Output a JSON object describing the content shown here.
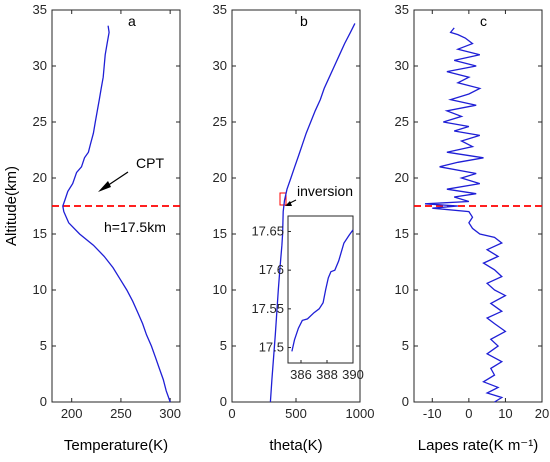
{
  "colors": {
    "series": "#1f1fd6",
    "reference_line": "#ff0000",
    "inset_box": "#ff0000"
  },
  "chart_data": [
    {
      "panel": "a",
      "type": "line",
      "xlabel": "Temperature(K)",
      "ylabel": "Altitude(km)",
      "xlim": [
        180,
        310
      ],
      "ylim": [
        0,
        35
      ],
      "xticks": [
        200,
        250,
        300
      ],
      "yticks": [
        0,
        5,
        10,
        15,
        20,
        25,
        30,
        35
      ],
      "reference_line": {
        "y": 17.5,
        "style": "dashed"
      },
      "annotations": [
        {
          "text": "CPT",
          "arrow": true
        },
        {
          "text": "h=17.5km"
        }
      ],
      "series": [
        {
          "points": [
            [
              300,
              0
            ],
            [
              296,
              1
            ],
            [
              293,
              2
            ],
            [
              289,
              3
            ],
            [
              285,
              4
            ],
            [
              281,
              5
            ],
            [
              276,
              6
            ],
            [
              272,
              7
            ],
            [
              267,
              8
            ],
            [
              262,
              9
            ],
            [
              256,
              10
            ],
            [
              249,
              11
            ],
            [
              242,
              12
            ],
            [
              233,
              13
            ],
            [
              222,
              14
            ],
            [
              208,
              15
            ],
            [
              197,
              16
            ],
            [
              192,
              17
            ],
            [
              191,
              17.5
            ],
            [
              193,
              18
            ],
            [
              196,
              18.8
            ],
            [
              201,
              19.5
            ],
            [
              205,
              20.5
            ],
            [
              210,
              21
            ],
            [
              213,
              21.8
            ],
            [
              217,
              22.3
            ],
            [
              219,
              23
            ],
            [
              222,
              24
            ],
            [
              224,
              25
            ],
            [
              226,
              26
            ],
            [
              228,
              27
            ],
            [
              230,
              28
            ],
            [
              232,
              29
            ],
            [
              233,
              30
            ],
            [
              234,
              31
            ],
            [
              236,
              32
            ],
            [
              238,
              33
            ],
            [
              237,
              33.6
            ]
          ]
        }
      ]
    },
    {
      "panel": "b",
      "type": "line",
      "xlabel": "theta(K)",
      "xlim": [
        0,
        1000
      ],
      "ylim": [
        0,
        35
      ],
      "xticks": [
        0,
        500,
        1000
      ],
      "yticks": [
        0,
        5,
        10,
        15,
        20,
        25,
        30,
        35
      ],
      "annotations": [
        {
          "text": "inversion",
          "arrow": true
        }
      ],
      "series": [
        {
          "points": [
            [
              300,
              0
            ],
            [
              312,
              2
            ],
            [
              325,
              4
            ],
            [
              338,
              6
            ],
            [
              350,
              8
            ],
            [
              362,
              10
            ],
            [
              375,
              12
            ],
            [
              390,
              14
            ],
            [
              395,
              15
            ],
            [
              398,
              16
            ],
            [
              400,
              17
            ],
            [
              410,
              18
            ],
            [
              430,
              19
            ],
            [
              460,
              20
            ],
            [
              490,
              21
            ],
            [
              520,
              22
            ],
            [
              550,
              23
            ],
            [
              580,
              24
            ],
            [
              615,
              25
            ],
            [
              650,
              26
            ],
            [
              690,
              27
            ],
            [
              720,
              28
            ],
            [
              760,
              29
            ],
            [
              800,
              30
            ],
            [
              840,
              31
            ],
            [
              880,
              32
            ],
            [
              925,
              33
            ],
            [
              960,
              33.8
            ]
          ]
        }
      ],
      "inset": {
        "xlim": [
          385,
          390
        ],
        "ylim": [
          17.48,
          17.67
        ],
        "xticks": [
          386,
          388,
          390
        ],
        "yticks": [
          17.5,
          17.55,
          17.6,
          17.65
        ],
        "series": [
          {
            "points": [
              [
                385.3,
                17.495
              ],
              [
                385.5,
                17.51
              ],
              [
                385.8,
                17.525
              ],
              [
                386.1,
                17.535
              ],
              [
                386.5,
                17.537
              ],
              [
                387.0,
                17.545
              ],
              [
                387.4,
                17.55
              ],
              [
                387.7,
                17.558
              ],
              [
                387.9,
                17.575
              ],
              [
                388.1,
                17.59
              ],
              [
                388.3,
                17.598
              ],
              [
                388.6,
                17.6
              ],
              [
                388.9,
                17.612
              ],
              [
                389.3,
                17.635
              ],
              [
                389.7,
                17.645
              ],
              [
                390.0,
                17.652
              ]
            ]
          }
        ]
      }
    },
    {
      "panel": "c",
      "type": "line",
      "xlabel": "Lapes rate(K m⁻¹)",
      "xlim": [
        -15,
        20
      ],
      "ylim": [
        0,
        35
      ],
      "xticks": [
        -10,
        0,
        10,
        20
      ],
      "yticks": [
        0,
        5,
        10,
        15,
        20,
        25,
        30,
        35
      ],
      "reference_line": {
        "y": 17.5,
        "style": "dashed"
      },
      "series": [
        {
          "points": [
            [
              7,
              0
            ],
            [
              9,
              0.4
            ],
            [
              5,
              0.8
            ],
            [
              8,
              1.3
            ],
            [
              4,
              1.8
            ],
            [
              7,
              2.4
            ],
            [
              6,
              3
            ],
            [
              9,
              3.6
            ],
            [
              5,
              4.3
            ],
            [
              8,
              5
            ],
            [
              6,
              5.6
            ],
            [
              10,
              6.3
            ],
            [
              7,
              7
            ],
            [
              5,
              7.5
            ],
            [
              9,
              8.1
            ],
            [
              6,
              8.8
            ],
            [
              10,
              9.5
            ],
            [
              7,
              10
            ],
            [
              5,
              10.6
            ],
            [
              9,
              11.2
            ],
            [
              7,
              11.8
            ],
            [
              4,
              12.4
            ],
            [
              8,
              13
            ],
            [
              5,
              13.6
            ],
            [
              9,
              14.2
            ],
            [
              7,
              14.7
            ],
            [
              3,
              15
            ],
            [
              1,
              15.5
            ],
            [
              0,
              16
            ],
            [
              1,
              16.5
            ],
            [
              0,
              17
            ],
            [
              -10,
              17.3
            ],
            [
              -3,
              17.5
            ],
            [
              -12,
              17.7
            ],
            [
              0,
              17.9
            ],
            [
              -4,
              18.3
            ],
            [
              2,
              18.6
            ],
            [
              -6,
              19
            ],
            [
              3,
              19.5
            ],
            [
              -2,
              20
            ],
            [
              2,
              20.4
            ],
            [
              -8,
              21
            ],
            [
              -3,
              21.4
            ],
            [
              4,
              21.8
            ],
            [
              -6,
              22.3
            ],
            [
              1,
              22.8
            ],
            [
              -2,
              23.3
            ],
            [
              3,
              23.8
            ],
            [
              -4,
              24.2
            ],
            [
              0,
              24.6
            ],
            [
              -7,
              25
            ],
            [
              -2,
              25.5
            ],
            [
              -6,
              26
            ],
            [
              2,
              26.5
            ],
            [
              -5,
              27
            ],
            [
              0,
              27.5
            ],
            [
              3,
              28
            ],
            [
              -3,
              28.5
            ],
            [
              0,
              29
            ],
            [
              -6,
              29.5
            ],
            [
              2,
              30
            ],
            [
              -4,
              30.5
            ],
            [
              3,
              31
            ],
            [
              -3,
              31.5
            ],
            [
              1,
              32
            ],
            [
              -1,
              32.5
            ],
            [
              -3,
              32.8
            ],
            [
              -5,
              33
            ],
            [
              -4,
              33.4
            ]
          ]
        }
      ]
    }
  ]
}
